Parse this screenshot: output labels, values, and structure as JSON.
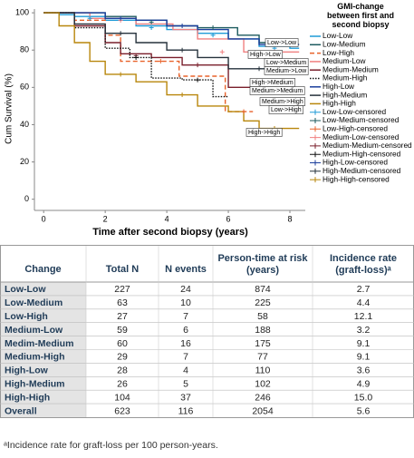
{
  "chart_data": {
    "type": "line",
    "step": true,
    "ylabel": "Cum Survival (%)",
    "xlabel": "Time after second biopsy (years)",
    "legend_title": "GMI-change between first and second biopsy",
    "xlim": [
      -0.3,
      8.5
    ],
    "xticks": [
      0,
      2,
      4,
      6,
      8
    ],
    "ylim": [
      -6,
      102
    ],
    "yticks": [
      0,
      20,
      40,
      60,
      80,
      100
    ],
    "legend": "right",
    "series": [
      {
        "name": "Low-Low",
        "color": "#1f9bd7",
        "line": "solid",
        "x": [
          0,
          0.5,
          1,
          2,
          3,
          4,
          5,
          6,
          7,
          8,
          8.3
        ],
        "values": [
          100,
          99,
          98,
          96,
          93,
          91,
          89,
          86,
          82,
          81,
          81
        ]
      },
      {
        "name": "Low-Medium",
        "color": "#1b5a5e",
        "line": "solid",
        "x": [
          0,
          1,
          2,
          3,
          4,
          5,
          6.3,
          7,
          8
        ],
        "values": [
          100,
          100,
          98,
          96,
          93,
          92,
          88,
          84,
          84
        ]
      },
      {
        "name": "Low-High",
        "color": "#e8622a",
        "line": "dashed",
        "x": [
          0,
          1,
          2,
          2.5,
          4.3,
          4.4,
          5.8,
          5.9,
          6.8
        ],
        "values": [
          100,
          96,
          88,
          74,
          74,
          66,
          66,
          47,
          47
        ]
      },
      {
        "name": "Medium-Low",
        "color": "#f08080",
        "line": "solid",
        "x": [
          0,
          1.5,
          3,
          4.2,
          5,
          6.5,
          8.3
        ],
        "values": [
          100,
          97,
          94,
          91,
          86,
          79,
          79
        ]
      },
      {
        "name": "Medium-Medium",
        "color": "#7a1f2b",
        "line": "solid",
        "x": [
          0,
          1,
          2,
          2.5,
          3.5,
          4.5,
          6,
          8.3
        ],
        "values": [
          100,
          93,
          84,
          78,
          76,
          72,
          60,
          60
        ]
      },
      {
        "name": "Medium-High",
        "color": "#111111",
        "line": "dotted",
        "x": [
          0,
          1,
          2,
          2.8,
          3.5,
          4.5,
          5.5,
          6
        ],
        "values": [
          100,
          92,
          81,
          76,
          65,
          64,
          55,
          55
        ]
      },
      {
        "name": "High-Low",
        "color": "#1b3e9c",
        "line": "solid",
        "x": [
          0,
          2,
          3,
          4,
          5,
          6,
          7,
          8.3
        ],
        "values": [
          100,
          97,
          96,
          93,
          91,
          86,
          83,
          83
        ]
      },
      {
        "name": "High-Medium",
        "color": "#26323c",
        "line": "solid",
        "x": [
          0,
          1,
          2,
          3,
          4,
          5,
          6,
          8
        ],
        "values": [
          100,
          94,
          89,
          84,
          80,
          76,
          70,
          70
        ]
      },
      {
        "name": "High-High",
        "color": "#b8860b",
        "line": "solid",
        "x": [
          0,
          0.5,
          1,
          1.5,
          2,
          3,
          4,
          5,
          6,
          6.5,
          7,
          8.3
        ],
        "values": [
          100,
          93,
          84,
          74,
          67,
          63,
          56,
          50,
          47,
          42,
          38,
          38
        ]
      },
      {
        "name": "Low-Low-censored",
        "color": "#1f9bd7",
        "marker": "+",
        "x": [
          1.5,
          3.5,
          5.5,
          7.5
        ],
        "values": [
          97,
          92,
          88,
          81
        ]
      },
      {
        "name": "Low-Medium-censored",
        "color": "#1b5a5e",
        "marker": "+",
        "x": [
          3.5,
          5.5,
          7.5
        ],
        "values": [
          95,
          92,
          84
        ]
      },
      {
        "name": "Low-High-censored",
        "color": "#e8622a",
        "marker": "+",
        "x": [
          3.8,
          6.5
        ],
        "values": [
          74,
          47
        ]
      },
      {
        "name": "Medium-Low-censored",
        "color": "#f08080",
        "marker": "+",
        "x": [
          2.5,
          5.8,
          7.5
        ],
        "values": [
          96,
          79,
          79
        ]
      },
      {
        "name": "Medium-Medium-censored",
        "color": "#7a1f2b",
        "marker": "+",
        "x": [
          3,
          5,
          7
        ],
        "values": [
          77,
          72,
          60
        ]
      },
      {
        "name": "Medium-High-censored",
        "color": "#111111",
        "marker": "+",
        "x": [
          3,
          5
        ],
        "values": [
          76,
          64
        ]
      },
      {
        "name": "High-Low-censored",
        "color": "#1b3e9c",
        "marker": "+",
        "x": [
          2.5,
          4.5,
          7.5
        ],
        "values": [
          97,
          93,
          83
        ]
      },
      {
        "name": "High-Medium-censored",
        "color": "#26323c",
        "marker": "+",
        "x": [
          2.5,
          4.5,
          7
        ],
        "values": [
          89,
          80,
          70
        ]
      },
      {
        "name": "High-High-censored",
        "color": "#b8860b",
        "marker": "+",
        "x": [
          2.5,
          4.5,
          7.5
        ],
        "values": [
          67,
          56,
          38
        ]
      }
    ],
    "annotations": [
      "Low->Low",
      "High->Low",
      "Low->Medium",
      "Medium->Low",
      "High->Medium",
      "Medium->Medium",
      "Medium->High",
      "Low->High",
      "High->High"
    ]
  },
  "table": {
    "header": [
      "Change",
      "Total N",
      "N events",
      "Person-time at risk (years)",
      "Incidence rate (graft-loss)ᵃ"
    ],
    "rows": [
      [
        "Low-Low",
        "227",
        "24",
        "874",
        "2.7"
      ],
      [
        "Low-Medium",
        "63",
        "10",
        "225",
        "4.4"
      ],
      [
        "Low-High",
        "27",
        "7",
        "58",
        "12.1"
      ],
      [
        "Medium-Low",
        "59",
        "6",
        "188",
        "3.2"
      ],
      [
        "Medim-Medium",
        "60",
        "16",
        "175",
        "9.1"
      ],
      [
        "Medium-High",
        "29",
        "7",
        "77",
        "9.1"
      ],
      [
        "High-Low",
        "28",
        "4",
        "110",
        "3.6"
      ],
      [
        "High-Medium",
        "26",
        "5",
        "102",
        "4.9"
      ],
      [
        "High-High",
        "104",
        "37",
        "246",
        "15.0"
      ],
      [
        "Overall",
        "623",
        "116",
        "2054",
        "5.6"
      ]
    ]
  },
  "footnote": "ᵃIncidence rate for graft-loss per 100 person-years."
}
